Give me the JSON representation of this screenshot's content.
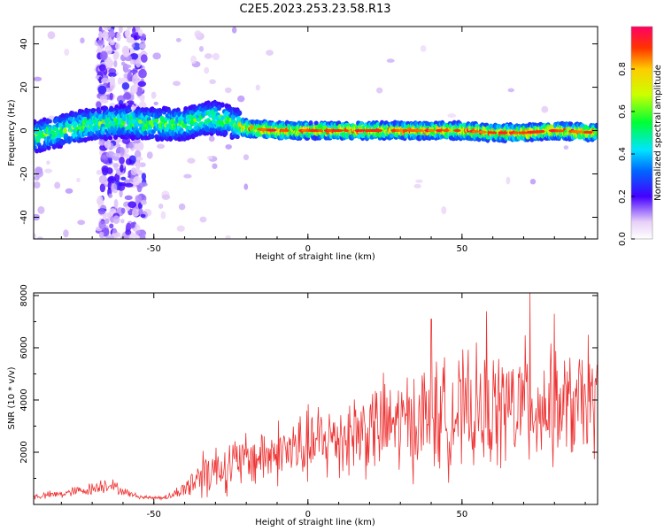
{
  "figure": {
    "title": "C2E5.2023.253.23.58.R13"
  },
  "chart_data": [
    {
      "type": "heatmap",
      "xlabel": "Height of straight line (km)",
      "ylabel": "Frequency (Hz)",
      "xlim": [
        -89,
        94
      ],
      "ylim": [
        -50,
        48
      ],
      "xticks": [
        -50,
        0,
        50
      ],
      "yticks": [
        -40,
        -20,
        0,
        20,
        40
      ],
      "colorbar": {
        "label": "Normalized spectral amplitude",
        "range": [
          0,
          1
        ],
        "ticks": [
          0.0,
          0.2,
          0.4,
          0.6,
          0.8
        ]
      },
      "ridge": {
        "description_points_x": [
          -89,
          -80,
          -70,
          -60,
          -50,
          -40,
          -35,
          -30,
          -25,
          -20,
          -10,
          0,
          10,
          20,
          30,
          40,
          50,
          60,
          70,
          80,
          94
        ],
        "frequency_hz": [
          -3,
          0,
          3,
          4,
          3,
          3,
          5,
          6,
          4,
          1,
          0,
          0,
          0,
          0,
          0,
          0,
          0,
          -1,
          -1,
          0,
          -1
        ]
      },
      "noise_column_x": [
        -68,
        -53
      ]
    },
    {
      "type": "line",
      "xlabel": "Height of straight line (km)",
      "ylabel": "SNR (10 * v/v)",
      "xlim": [
        -89,
        94
      ],
      "ylim": [
        0,
        8100
      ],
      "xticks": [
        -50,
        0,
        50
      ],
      "yticks": [
        2000,
        4000,
        6000,
        8000
      ],
      "series": [
        {
          "color": "#ee3333",
          "envelope_x": [
            -89,
            -80,
            -70,
            -65,
            -60,
            -55,
            -50,
            -45,
            -40,
            -37,
            -35,
            -30,
            -25,
            -20,
            -10,
            0,
            10,
            20,
            30,
            40,
            50,
            60,
            70,
            80,
            94
          ],
          "envelope_mean": [
            300,
            400,
            600,
            800,
            500,
            300,
            250,
            300,
            600,
            900,
            1200,
            1400,
            1500,
            1700,
            2000,
            2200,
            2600,
            2900,
            3100,
            3300,
            3500,
            3600,
            3800,
            3700,
            3800
          ],
          "envelope_amp": [
            150,
            200,
            300,
            400,
            200,
            100,
            80,
            150,
            400,
            900,
            1300,
            1200,
            1300,
            1300,
            1500,
            1800,
            2000,
            2200,
            2400,
            2600,
            2700,
            2800,
            3000,
            2600,
            2400
          ],
          "peaks": [
            {
              "x": 40,
              "y": 7100
            },
            {
              "x": 58,
              "y": 7400
            },
            {
              "x": 72,
              "y": 8100
            },
            {
              "x": 80,
              "y": 7300
            },
            {
              "x": 91,
              "y": 6500
            }
          ]
        }
      ]
    }
  ]
}
